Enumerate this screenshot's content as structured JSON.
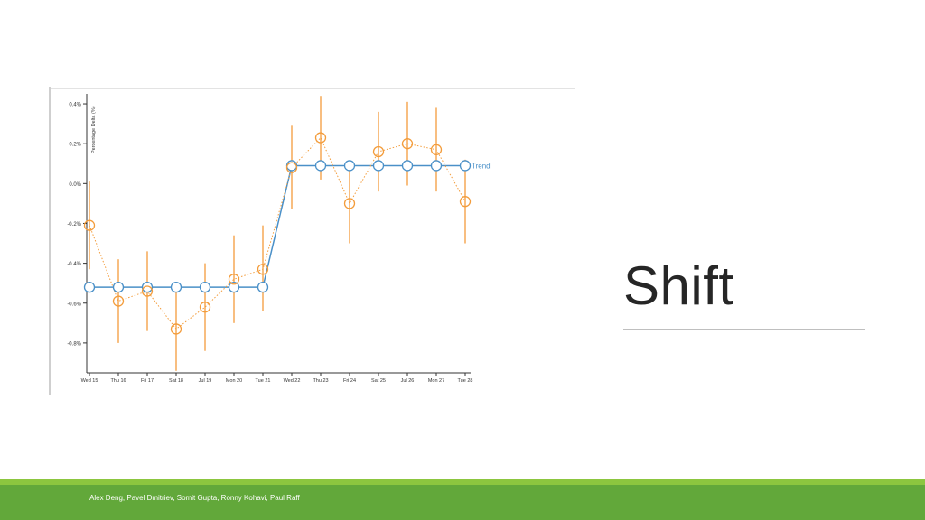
{
  "slide": {
    "title": "Shift",
    "footer": "Alex Deng, Pavel Dmitriev, Somit Gupta, Ronny Kohavi, Paul Raff"
  },
  "colors": {
    "trend": "#4a90c8",
    "delta": "#f39c3b",
    "footer_bar": "#62a83a",
    "footer_stripe": "#8cc63f"
  },
  "chart_data": {
    "type": "line",
    "ylabel": "Percentage Delta (%)",
    "ylim": [
      -0.95,
      0.45
    ],
    "yticks": [
      -0.8,
      -0.6,
      -0.4,
      -0.2,
      0.0,
      0.2,
      0.4
    ],
    "ytick_labels": [
      "-0.8%",
      "-0.6%",
      "-0.4%",
      "-0.2%",
      "0.0%",
      "0.2%",
      "0.4%"
    ],
    "categories": [
      "Wed 15",
      "Thu 16",
      "Fri 17",
      "Sat 18",
      "Jul 19",
      "Mon 20",
      "Tue 21",
      "Wed 22",
      "Thu 23",
      "Fri 24",
      "Sat 25",
      "Jul 26",
      "Mon 27",
      "Tue 28"
    ],
    "series": [
      {
        "name": "Trend",
        "style": "solid",
        "values": [
          -0.52,
          -0.52,
          -0.52,
          -0.52,
          -0.52,
          -0.52,
          -0.52,
          0.09,
          0.09,
          0.09,
          0.09,
          0.09,
          0.09,
          0.09
        ]
      },
      {
        "style": "dotted",
        "values": [
          -0.21,
          -0.59,
          -0.54,
          -0.73,
          -0.62,
          -0.48,
          -0.43,
          0.08,
          0.23,
          -0.1,
          0.16,
          0.2,
          0.17,
          -0.09
        ],
        "lower": [
          -0.43,
          -0.8,
          -0.74,
          -0.94,
          -0.84,
          -0.7,
          -0.64,
          -0.13,
          0.02,
          -0.3,
          -0.04,
          -0.01,
          -0.04,
          -0.3
        ],
        "upper": [
          0.01,
          -0.38,
          -0.34,
          -0.52,
          -0.4,
          -0.26,
          -0.21,
          0.29,
          0.44,
          0.11,
          0.36,
          0.41,
          0.38,
          0.12
        ]
      }
    ]
  }
}
